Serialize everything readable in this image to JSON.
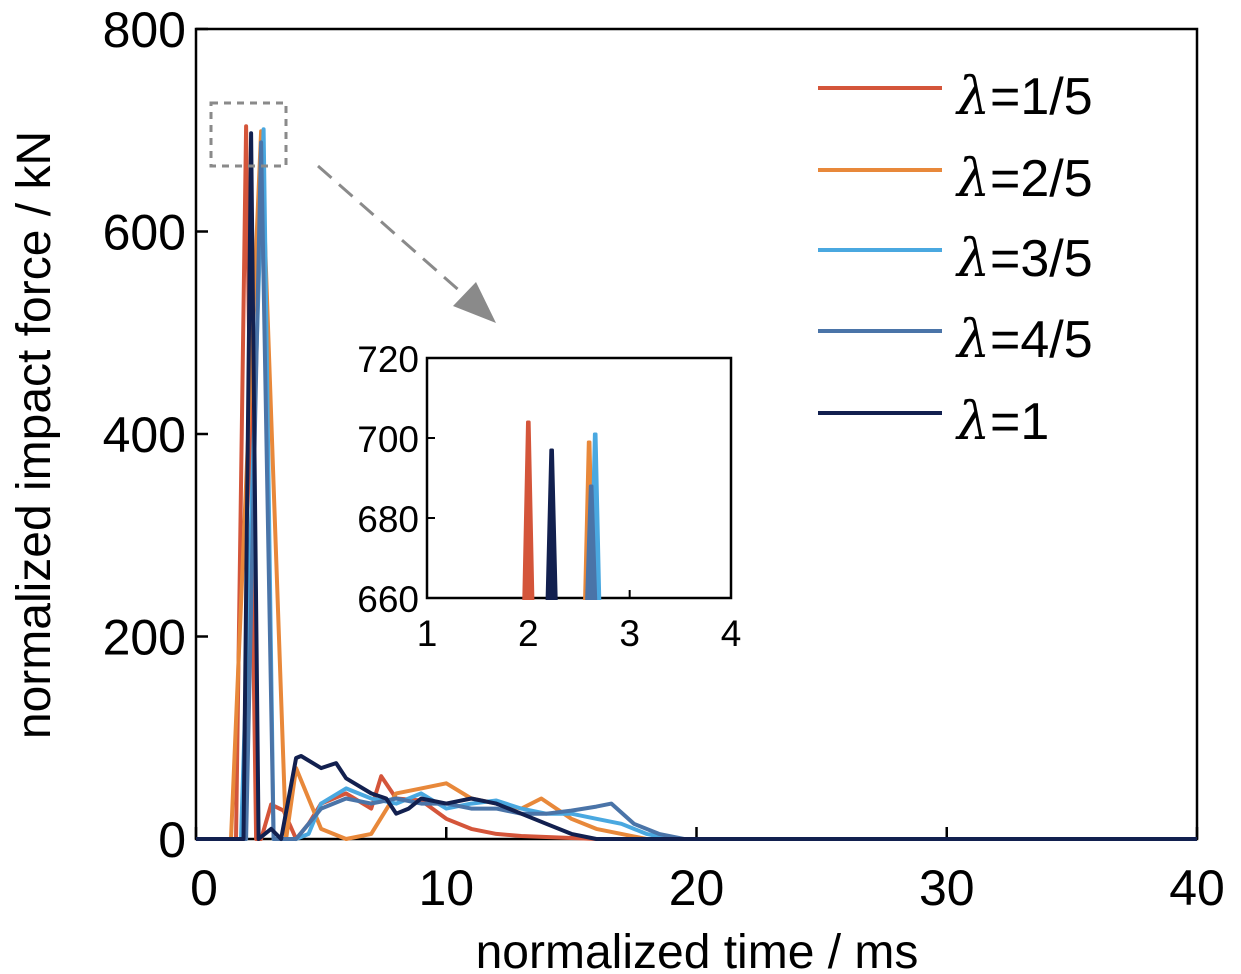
{
  "chart_data": [
    {
      "type": "line",
      "xlabel": "normalized time / ms",
      "ylabel": "normalized impact force / kN",
      "xlim": [
        0,
        40
      ],
      "ylim": [
        0,
        800
      ],
      "xticks": [
        0,
        10,
        20,
        30,
        40
      ],
      "yticks": [
        0,
        200,
        400,
        600,
        800
      ],
      "xtick_labels": [
        "0",
        "10",
        "20",
        "30",
        "40"
      ],
      "ytick_labels": [
        "0",
        "200",
        "400",
        "600",
        "800"
      ],
      "grid": false,
      "legend": "top-right",
      "series": [
        {
          "name": "λ=1/5",
          "color": "#d4553a",
          "x": [
            0,
            1.6,
            2.0,
            2.4,
            2.6,
            3.0,
            3.5,
            4.0,
            4.5,
            5.0,
            6.0,
            7.0,
            7.4,
            8.0,
            9.0,
            10.0,
            11.0,
            12.0,
            13.0,
            14.0,
            15.0,
            16.0,
            40
          ],
          "y": [
            0,
            0,
            704,
            0,
            0,
            34,
            28,
            0,
            15,
            35,
            45,
            30,
            62,
            40,
            38,
            20,
            10,
            5,
            3,
            2,
            1,
            0,
            0
          ]
        },
        {
          "name": "λ=2/5",
          "color": "#e8883a",
          "x": [
            0,
            1.4,
            2.6,
            3.6,
            4.0,
            4.5,
            5.0,
            6.0,
            7.0,
            8.0,
            9.0,
            10.0,
            11.0,
            12.0,
            13.0,
            13.8,
            15.0,
            16.0,
            17.0,
            18.0,
            40
          ],
          "y": [
            0,
            0,
            699,
            0,
            70,
            40,
            10,
            0,
            5,
            45,
            50,
            55,
            40,
            35,
            30,
            40,
            20,
            10,
            5,
            0,
            0
          ]
        },
        {
          "name": "λ=3/5",
          "color": "#4aa8e0",
          "x": [
            0,
            1.8,
            2.7,
            3.1,
            4.0,
            4.5,
            5.0,
            6.0,
            7.0,
            8.0,
            9.0,
            10.0,
            11.0,
            12.0,
            13.0,
            14.0,
            15.0,
            16.0,
            17.0,
            18.0,
            19.0,
            40
          ],
          "y": [
            0,
            0,
            701,
            0,
            0,
            5,
            35,
            50,
            40,
            35,
            45,
            30,
            35,
            38,
            30,
            25,
            25,
            20,
            15,
            5,
            0,
            0
          ]
        },
        {
          "name": "λ=4/5",
          "color": "#4a74a8",
          "x": [
            0,
            2.0,
            2.6,
            3.1,
            4.0,
            5.0,
            6.0,
            7.0,
            8.0,
            9.0,
            10.0,
            11.0,
            12.0,
            13.0,
            14.0,
            15.0,
            16.0,
            16.6,
            17.5,
            18.5,
            19.5,
            40
          ],
          "y": [
            0,
            0,
            688,
            0,
            0,
            30,
            40,
            35,
            40,
            35,
            35,
            30,
            30,
            25,
            25,
            28,
            32,
            35,
            15,
            5,
            0,
            0
          ]
        },
        {
          "name": "λ=1",
          "color": "#12204f",
          "x": [
            0,
            1.9,
            2.2,
            2.5,
            3.0,
            3.4,
            4.0,
            4.2,
            5.0,
            5.6,
            6.0,
            7.0,
            7.6,
            8.0,
            8.5,
            9.0,
            10.0,
            11.0,
            12.0,
            13.0,
            14.0,
            15.0,
            16.0,
            17.0,
            18.0,
            40
          ],
          "y": [
            0,
            0,
            697,
            0,
            10,
            0,
            80,
            82,
            70,
            75,
            60,
            45,
            40,
            25,
            30,
            40,
            35,
            40,
            35,
            25,
            15,
            5,
            0,
            0,
            0,
            0
          ]
        }
      ]
    },
    {
      "type": "line",
      "xlim": [
        1,
        4
      ],
      "ylim": [
        660,
        720
      ],
      "xticks": [
        1,
        2,
        3,
        4
      ],
      "yticks": [
        660,
        680,
        700,
        720
      ],
      "xtick_labels": [
        "1",
        "2",
        "3",
        "4"
      ],
      "ytick_labels": [
        "660",
        "680",
        "700",
        "720"
      ],
      "grid": false,
      "series": [
        {
          "color": "#d4553a",
          "peak_x": 2.0,
          "peak_y": 704
        },
        {
          "color": "#e8883a",
          "peak_x": 2.6,
          "peak_y": 699
        },
        {
          "color": "#4aa8e0",
          "peak_x": 2.66,
          "peak_y": 701
        },
        {
          "color": "#4a74a8",
          "peak_x": 2.62,
          "peak_y": 688
        },
        {
          "color": "#12204f",
          "peak_x": 2.23,
          "peak_y": 697
        }
      ]
    }
  ],
  "legend": {
    "lambda_symbol": "λ",
    "entries": [
      "=1/5",
      "=2/5",
      "=3/5",
      "=4/5",
      "=1"
    ]
  },
  "colors": {
    "axis": "#000000",
    "zoom_indicator": "#8a8a8a"
  }
}
